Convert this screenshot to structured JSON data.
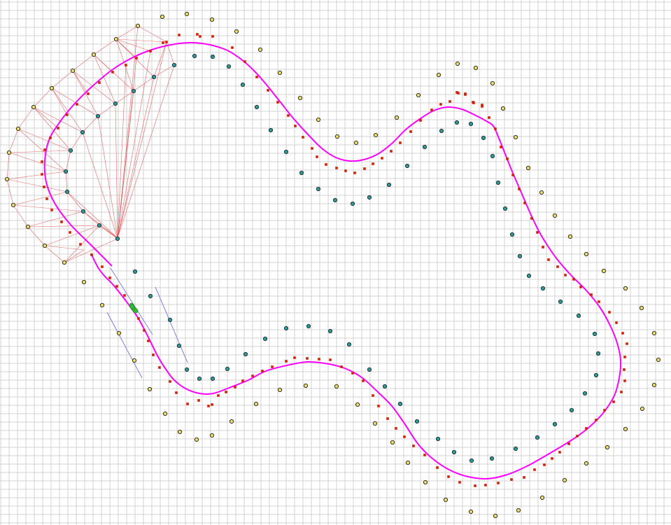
{
  "colors": {
    "background": "#ffffff",
    "grid": "#c8c8c8",
    "racing_line": "#ff00ff",
    "triangulation": "#e05050",
    "midpoint": "#d02000",
    "outer_cone": "#f0e060",
    "inner_cone": "#20a0a0",
    "cone_stroke": "#303030",
    "direction_arrow": "#8080e0",
    "car": "#30c030"
  },
  "icons": {
    "outer_cone": "yellow-circle-marker",
    "inner_cone": "teal-circle-marker",
    "midpoint": "red-square-marker",
    "car": "green-car-marker"
  }
}
